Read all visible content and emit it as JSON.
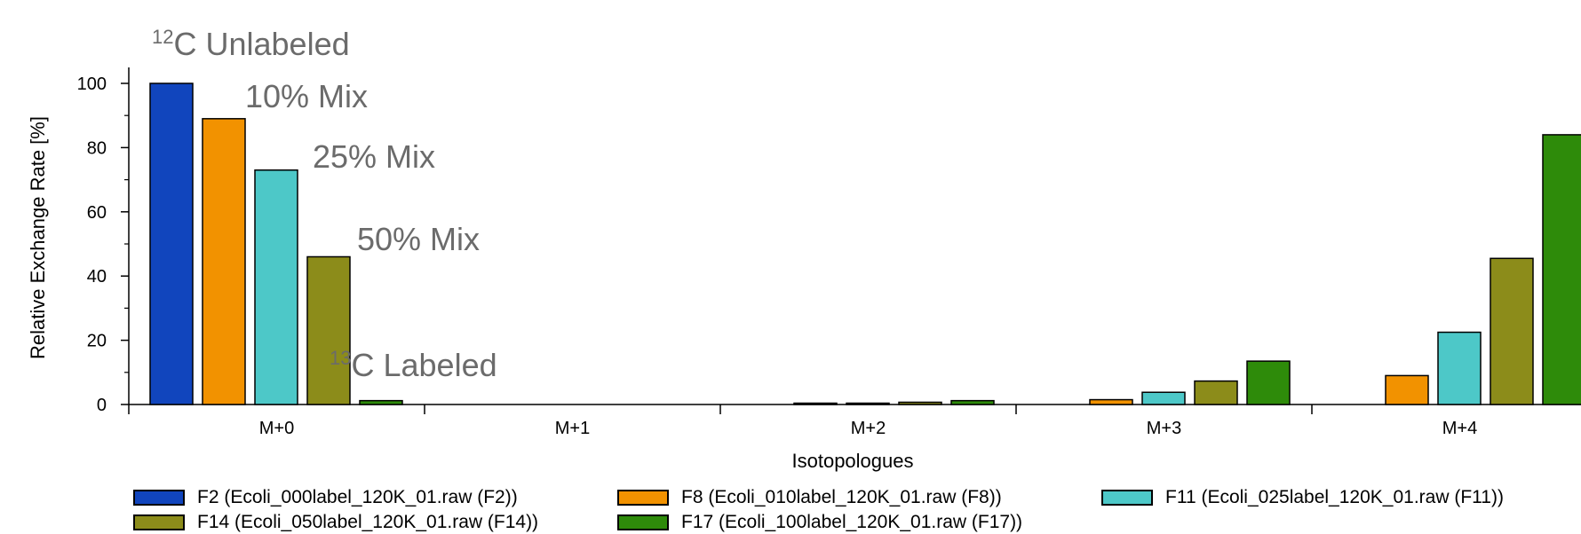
{
  "chart_data": {
    "type": "bar",
    "xlabel": "Isotopologues",
    "ylabel": "Relative Exchange Rate [%]",
    "categories": [
      "M+0",
      "M+1",
      "M+2",
      "M+3",
      "M+4"
    ],
    "ylim": [
      0,
      100
    ],
    "yticks": [
      0,
      20,
      40,
      60,
      80,
      100
    ],
    "grid": false,
    "legend_position": "bottom",
    "series": [
      {
        "name": "F2 (Ecoli_000label_120K_01.raw (F2))",
        "color": "#1145bd",
        "values": [
          100,
          0,
          0,
          0,
          0
        ]
      },
      {
        "name": "F8 (Ecoli_010label_120K_01.raw (F8))",
        "color": "#f29200",
        "values": [
          89,
          0,
          0.2,
          1.5,
          9
        ]
      },
      {
        "name": "F11 (Ecoli_025label_120K_01.raw (F11))",
        "color": "#4dc8c8",
        "values": [
          73,
          0,
          0.4,
          3.8,
          22.5
        ]
      },
      {
        "name": "F14 (Ecoli_050label_120K_01.raw (F14))",
        "color": "#8c8c1a",
        "values": [
          46,
          0,
          0.7,
          7.3,
          45.5
        ]
      },
      {
        "name": "F17 (Ecoli_100label_120K_01.raw (F17))",
        "color": "#2e8b0a",
        "values": [
          1.2,
          0,
          1.2,
          13.5,
          84
        ]
      }
    ],
    "annotations": [
      {
        "sup": "12",
        "text": "C Unlabeled"
      },
      {
        "sup": "",
        "text": "10% Mix"
      },
      {
        "sup": "",
        "text": "25% Mix"
      },
      {
        "sup": "",
        "text": "50% Mix"
      },
      {
        "sup": "13",
        "text": "C Labeled"
      }
    ]
  }
}
